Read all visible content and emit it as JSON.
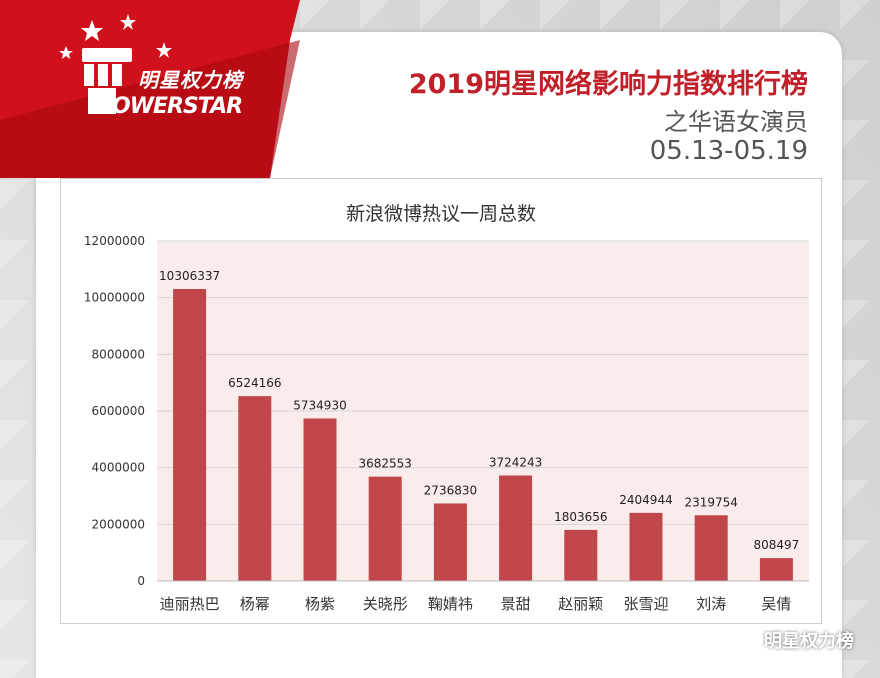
{
  "header": {
    "logo_cn": "明星权力榜",
    "logo_en": "OWERSTAR",
    "title": "2019明星网络影响力指数排行榜",
    "subtitle": "之华语女演员",
    "date_range": "05.13-05.19"
  },
  "watermark": {
    "text": "明星权力榜",
    "icon": "wechat-icon"
  },
  "colors": {
    "bar": "#c0464a",
    "banner": "#d0101a",
    "title": "#c0202a",
    "plot_bg": "#fbecec"
  },
  "chart_data": {
    "type": "bar",
    "title": "新浪微博热议一周总数",
    "xlabel": "",
    "ylabel": "",
    "ylim": [
      0,
      12000000
    ],
    "yticks": [
      "0",
      "2000000",
      "4000000",
      "6000000",
      "8000000",
      "10000000",
      "12000000"
    ],
    "grid": true,
    "categories": [
      "迪丽热巴",
      "杨幂",
      "杨紫",
      "关晓彤",
      "鞠婧祎",
      "景甜",
      "赵丽颖",
      "张雪迎",
      "刘涛",
      "吴倩"
    ],
    "values": [
      10306337,
      6524166,
      5734930,
      3682553,
      2736830,
      3724243,
      1803656,
      2404944,
      2319754,
      808497
    ],
    "data_labels": [
      "10306337",
      "6524166",
      "5734930",
      "3682553",
      "2736830",
      "3724243",
      "1803656",
      "2404944",
      "2319754",
      "808497"
    ]
  }
}
